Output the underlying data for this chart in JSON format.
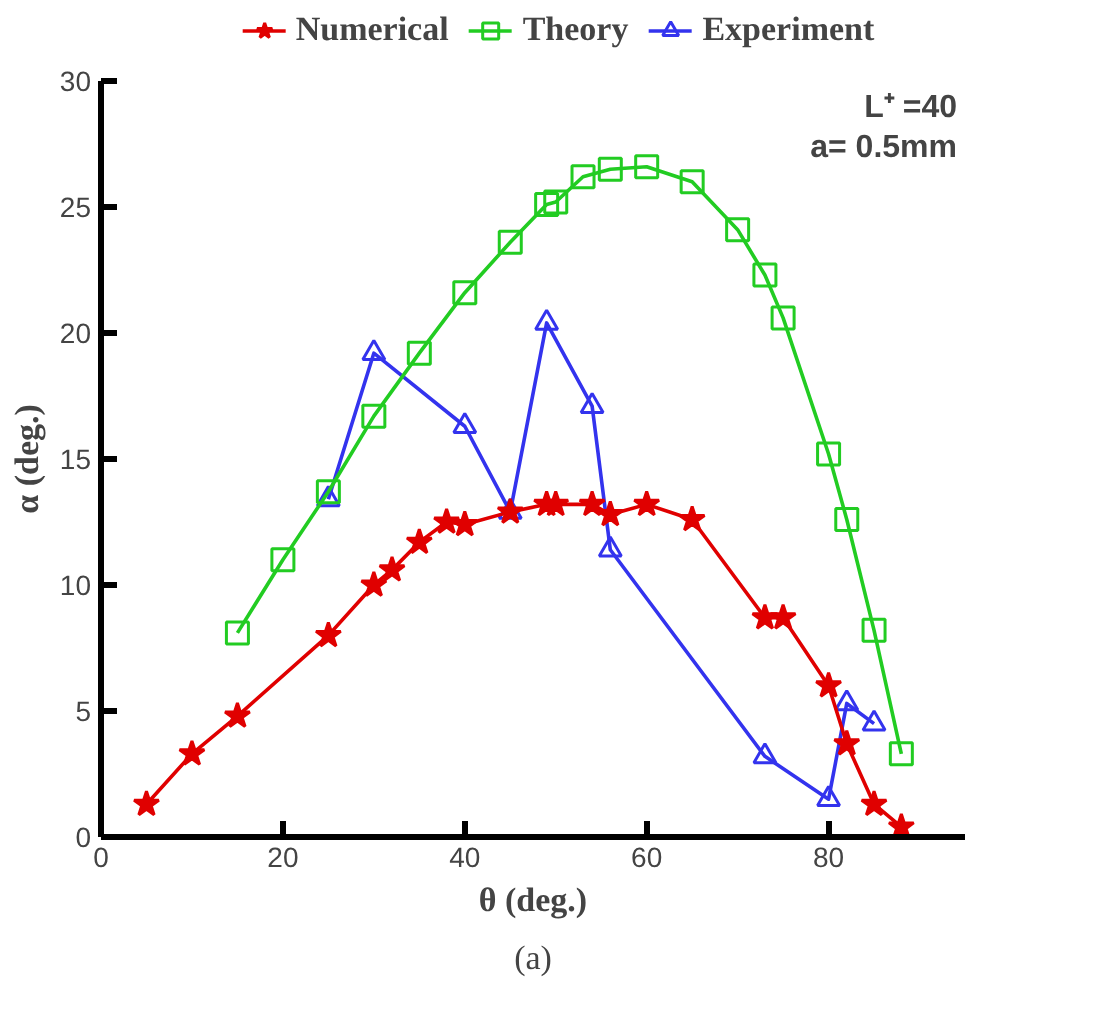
{
  "chart_data": {
    "type": "line",
    "xlabel": "θ (deg.)",
    "ylabel": "α (deg.)",
    "xlim": [
      0,
      95
    ],
    "ylim": [
      0,
      30
    ],
    "xticks": [
      0,
      20,
      40,
      60,
      80
    ],
    "yticks": [
      0,
      5,
      10,
      15,
      20,
      25,
      30
    ],
    "grid": false,
    "legend": "top",
    "annotations": [
      "L⁺ =40",
      "a= 0.5mm",
      "(a)"
    ],
    "series": [
      {
        "name": "Numerical",
        "color": "#e00000",
        "marker": "star",
        "x": [
          5,
          10,
          15,
          25,
          30,
          32,
          35,
          38,
          40,
          45,
          49,
          50,
          54,
          56,
          60,
          65,
          73,
          75,
          80,
          82,
          85,
          88
        ],
        "values": [
          1.3,
          3.3,
          4.8,
          8.0,
          10.0,
          10.6,
          11.7,
          12.5,
          12.4,
          12.9,
          13.2,
          13.2,
          13.2,
          12.8,
          13.2,
          12.6,
          8.7,
          8.7,
          6.0,
          3.7,
          1.3,
          0.4
        ]
      },
      {
        "name": "Theory",
        "color": "#22cc22",
        "marker": "square",
        "x": [
          15,
          20,
          25,
          30,
          35,
          40,
          45,
          49,
          50,
          53,
          56,
          60,
          65,
          70,
          73,
          75,
          80,
          82,
          85,
          88
        ],
        "values": [
          8.1,
          11.0,
          13.7,
          16.7,
          19.2,
          21.6,
          23.6,
          25.1,
          25.2,
          26.2,
          26.5,
          26.6,
          26.0,
          24.1,
          22.3,
          20.6,
          15.2,
          12.6,
          8.2,
          3.3
        ]
      },
      {
        "name": "Experiment",
        "color": "#3333ee",
        "marker": "triangle",
        "x": [
          25,
          30,
          40,
          45,
          49,
          54,
          56,
          73,
          80,
          82,
          85
        ],
        "values": [
          13.4,
          19.2,
          16.3,
          12.9,
          20.4,
          17.1,
          11.4,
          3.2,
          1.5,
          5.3,
          4.5
        ]
      }
    ]
  }
}
